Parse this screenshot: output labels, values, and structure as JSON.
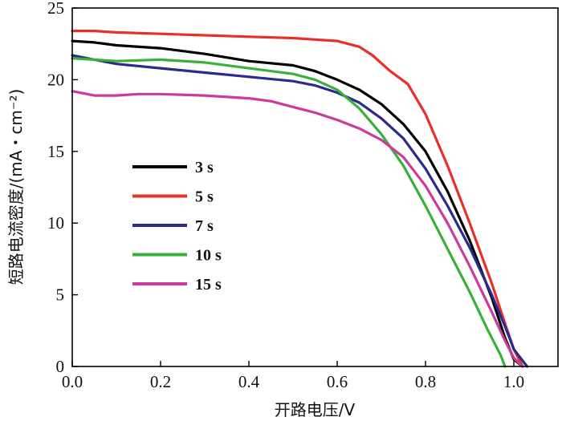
{
  "chart_data": {
    "type": "line",
    "xlabel": "开路电压/V",
    "ylabel": "短路电流密度/(mA・cm⁻²)",
    "xlim": [
      0,
      1.1
    ],
    "ylim": [
      0,
      25
    ],
    "x_ticks": [
      "0.0",
      "0.2",
      "0.4",
      "0.6",
      "0.8",
      "1.0"
    ],
    "y_ticks": [
      "0",
      "5",
      "10",
      "15",
      "20",
      "25"
    ],
    "grid": false,
    "legend_position": "center-left",
    "series": [
      {
        "name": "3 s",
        "color": "#000000",
        "points": [
          [
            0,
            22.7
          ],
          [
            0.05,
            22.6
          ],
          [
            0.1,
            22.4
          ],
          [
            0.2,
            22.2
          ],
          [
            0.3,
            21.8
          ],
          [
            0.4,
            21.3
          ],
          [
            0.5,
            21.0
          ],
          [
            0.55,
            20.6
          ],
          [
            0.6,
            20.0
          ],
          [
            0.65,
            19.3
          ],
          [
            0.7,
            18.3
          ],
          [
            0.75,
            16.9
          ],
          [
            0.8,
            15.0
          ],
          [
            0.85,
            12.2
          ],
          [
            0.9,
            8.8
          ],
          [
            0.95,
            4.8
          ],
          [
            0.98,
            2.0
          ],
          [
            1.0,
            0.5
          ],
          [
            1.02,
            0
          ]
        ]
      },
      {
        "name": "5 s",
        "color": "#e8302a",
        "points": [
          [
            0,
            23.4
          ],
          [
            0.05,
            23.4
          ],
          [
            0.1,
            23.3
          ],
          [
            0.2,
            23.2
          ],
          [
            0.3,
            23.1
          ],
          [
            0.4,
            23.0
          ],
          [
            0.5,
            22.9
          ],
          [
            0.6,
            22.7
          ],
          [
            0.65,
            22.3
          ],
          [
            0.68,
            21.7
          ],
          [
            0.72,
            20.6
          ],
          [
            0.76,
            19.7
          ],
          [
            0.8,
            17.6
          ],
          [
            0.85,
            14.0
          ],
          [
            0.9,
            10.0
          ],
          [
            0.95,
            5.8
          ],
          [
            0.98,
            3.0
          ],
          [
            1.0,
            1.2
          ],
          [
            1.02,
            0
          ]
        ]
      },
      {
        "name": "7 s",
        "color": "#2b2a8f",
        "points": [
          [
            0,
            21.7
          ],
          [
            0.05,
            21.4
          ],
          [
            0.1,
            21.1
          ],
          [
            0.2,
            20.8
          ],
          [
            0.3,
            20.5
          ],
          [
            0.4,
            20.2
          ],
          [
            0.5,
            19.9
          ],
          [
            0.55,
            19.6
          ],
          [
            0.6,
            19.1
          ],
          [
            0.65,
            18.4
          ],
          [
            0.7,
            17.3
          ],
          [
            0.75,
            15.9
          ],
          [
            0.8,
            13.8
          ],
          [
            0.85,
            11.2
          ],
          [
            0.9,
            8.3
          ],
          [
            0.95,
            5.0
          ],
          [
            0.98,
            2.8
          ],
          [
            1.0,
            1.2
          ],
          [
            1.03,
            0
          ]
        ]
      },
      {
        "name": "10 s",
        "color": "#3ab03a",
        "points": [
          [
            0,
            21.5
          ],
          [
            0.05,
            21.4
          ],
          [
            0.1,
            21.3
          ],
          [
            0.2,
            21.4
          ],
          [
            0.3,
            21.2
          ],
          [
            0.4,
            20.8
          ],
          [
            0.5,
            20.4
          ],
          [
            0.55,
            20.0
          ],
          [
            0.6,
            19.3
          ],
          [
            0.65,
            18.0
          ],
          [
            0.7,
            16.2
          ],
          [
            0.75,
            14.0
          ],
          [
            0.8,
            11.2
          ],
          [
            0.85,
            8.2
          ],
          [
            0.9,
            5.2
          ],
          [
            0.94,
            2.6
          ],
          [
            0.97,
            0.8
          ],
          [
            0.98,
            0
          ]
        ]
      },
      {
        "name": "15 s",
        "color": "#cc3a9a",
        "points": [
          [
            0,
            19.2
          ],
          [
            0.05,
            18.9
          ],
          [
            0.1,
            18.9
          ],
          [
            0.15,
            19.0
          ],
          [
            0.2,
            19.0
          ],
          [
            0.3,
            18.9
          ],
          [
            0.4,
            18.7
          ],
          [
            0.45,
            18.5
          ],
          [
            0.5,
            18.1
          ],
          [
            0.55,
            17.7
          ],
          [
            0.6,
            17.2
          ],
          [
            0.65,
            16.6
          ],
          [
            0.7,
            15.8
          ],
          [
            0.75,
            14.6
          ],
          [
            0.8,
            12.6
          ],
          [
            0.85,
            10.0
          ],
          [
            0.9,
            7.0
          ],
          [
            0.95,
            3.8
          ],
          [
            0.98,
            1.8
          ],
          [
            1.0,
            0.6
          ],
          [
            1.02,
            0
          ]
        ]
      }
    ]
  }
}
